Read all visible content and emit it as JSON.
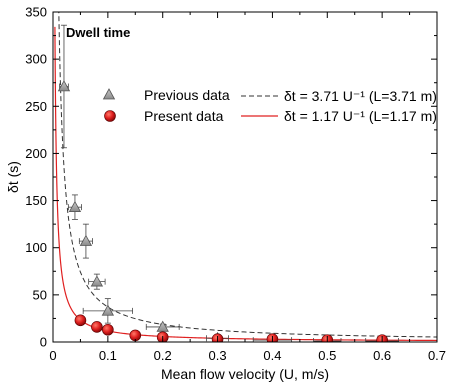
{
  "chart_data": {
    "type": "scatter",
    "annotation": "Dwell time",
    "xlabel": "Mean flow velocity (U, m/s)",
    "ylabel": "δt (s)",
    "xlim": [
      0,
      0.7
    ],
    "ylim": [
      0,
      350
    ],
    "xticks": [
      0,
      0.1,
      0.2,
      0.3,
      0.4,
      0.5,
      0.6,
      0.7
    ],
    "yticks": [
      0,
      50,
      100,
      150,
      200,
      250,
      300,
      350
    ],
    "xtick_labels": [
      "0",
      "0.1",
      "0.2",
      "0.3",
      "0.4",
      "0.5",
      "0.6",
      "0.7"
    ],
    "ytick_labels": [
      "0",
      "50",
      "100",
      "150",
      "200",
      "250",
      "300",
      "350"
    ],
    "legend_position": "top-right",
    "series": [
      {
        "name": "Previous data",
        "kind": "points",
        "marker": "triangle",
        "color": "#a0a0a0",
        "points": [
          {
            "x": 0.02,
            "y": 271,
            "xerr": 0.008,
            "yerr": 65
          },
          {
            "x": 0.04,
            "y": 143,
            "xerr": 0.012,
            "yerr": 13
          },
          {
            "x": 0.06,
            "y": 107,
            "xerr": 0.012,
            "yerr": 18
          },
          {
            "x": 0.08,
            "y": 64,
            "xerr": 0.015,
            "yerr": 8
          },
          {
            "x": 0.1,
            "y": 33,
            "xerr": 0.045,
            "yerr": 13
          },
          {
            "x": 0.2,
            "y": 16,
            "xerr": 0.03,
            "yerr": 3
          },
          {
            "x": 0.3,
            "y": 4,
            "xerr": 0.02,
            "yerr": 2
          },
          {
            "x": 0.4,
            "y": 2,
            "xerr": 0.035,
            "yerr": 2
          },
          {
            "x": 0.5,
            "y": 1,
            "xerr": 0.025,
            "yerr": 2
          },
          {
            "x": 0.6,
            "y": 1,
            "xerr": 0.03,
            "yerr": 2
          }
        ]
      },
      {
        "name": "Present data",
        "kind": "points",
        "marker": "circle",
        "color": "#e02020",
        "points": [
          {
            "x": 0.05,
            "y": 23
          },
          {
            "x": 0.08,
            "y": 16
          },
          {
            "x": 0.1,
            "y": 13
          },
          {
            "x": 0.15,
            "y": 7
          },
          {
            "x": 0.2,
            "y": 5
          },
          {
            "x": 0.3,
            "y": 3
          },
          {
            "x": 0.4,
            "y": 3
          },
          {
            "x": 0.5,
            "y": 2
          },
          {
            "x": 0.6,
            "y": 2
          }
        ]
      },
      {
        "name": "δt = 3.71 U⁻¹ (L=3.71 m)",
        "kind": "curve",
        "style": "dashed",
        "color": "#333333",
        "coefficient": 3.71,
        "x_range": [
          0.01,
          0.7
        ]
      },
      {
        "name": "δt = 1.17 U⁻¹ (L=1.17 m)",
        "kind": "curve",
        "style": "solid",
        "color": "#e02020",
        "coefficient": 1.17,
        "x_range": [
          0.0035,
          0.7
        ]
      }
    ]
  }
}
